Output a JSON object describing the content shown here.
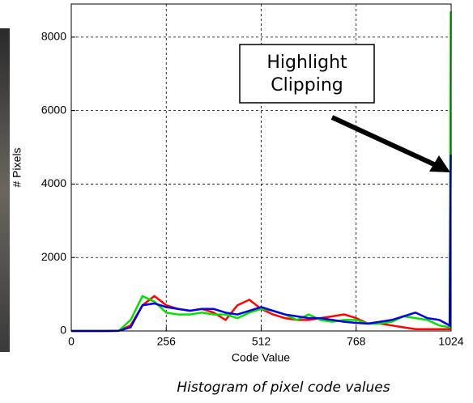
{
  "chart_data": {
    "type": "line",
    "xlabel": "Code Value",
    "ylabel": "# Pixels",
    "caption": "Histogram of pixel code values",
    "annotation": [
      "Highlight",
      "Clipping"
    ],
    "x": [
      0,
      32,
      64,
      96,
      128,
      160,
      192,
      224,
      256,
      288,
      320,
      352,
      384,
      416,
      448,
      480,
      512,
      544,
      576,
      608,
      640,
      672,
      704,
      736,
      768,
      800,
      832,
      864,
      896,
      928,
      960,
      992,
      1020,
      1023
    ],
    "series": [
      {
        "color": "#ff0000",
        "values": [
          0,
          0,
          0,
          0,
          5,
          150,
          700,
          950,
          700,
          600,
          550,
          600,
          500,
          300,
          700,
          850,
          600,
          450,
          350,
          300,
          300,
          350,
          400,
          450,
          350,
          200,
          200,
          150,
          100,
          50,
          50,
          50,
          50,
          100
        ]
      },
      {
        "color": "#00e000",
        "values": [
          0,
          0,
          0,
          0,
          5,
          300,
          950,
          800,
          500,
          450,
          450,
          500,
          450,
          450,
          350,
          500,
          600,
          550,
          450,
          300,
          450,
          300,
          250,
          300,
          300,
          200,
          200,
          250,
          400,
          350,
          300,
          150,
          100,
          8700
        ]
      },
      {
        "color": "#0000e0",
        "values": [
          0,
          0,
          0,
          0,
          5,
          100,
          700,
          750,
          650,
          600,
          550,
          600,
          600,
          500,
          450,
          550,
          650,
          550,
          450,
          400,
          350,
          350,
          300,
          250,
          220,
          200,
          250,
          300,
          400,
          500,
          350,
          300,
          150,
          4800
        ]
      }
    ],
    "xlim": [
      0,
      1024
    ],
    "xticks": [
      0,
      256,
      512,
      768,
      1024
    ],
    "ylim": [
      0,
      8900
    ],
    "yticks": [
      0,
      2000,
      4000,
      6000,
      8000
    ],
    "grid": true
  }
}
